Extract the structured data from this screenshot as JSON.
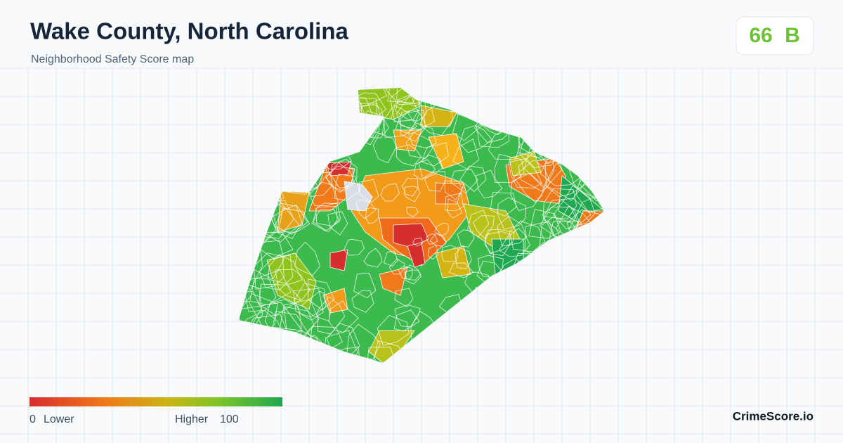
{
  "header": {
    "title": "Wake County, North Carolina",
    "subtitle": "Neighborhood Safety Score map"
  },
  "badge": {
    "score": 66,
    "grade": "B"
  },
  "legend": {
    "min": 0,
    "low_label": "Lower",
    "high_label": "Higher",
    "max": 100
  },
  "footer": {
    "brand": "CrimeScore.io"
  }
}
